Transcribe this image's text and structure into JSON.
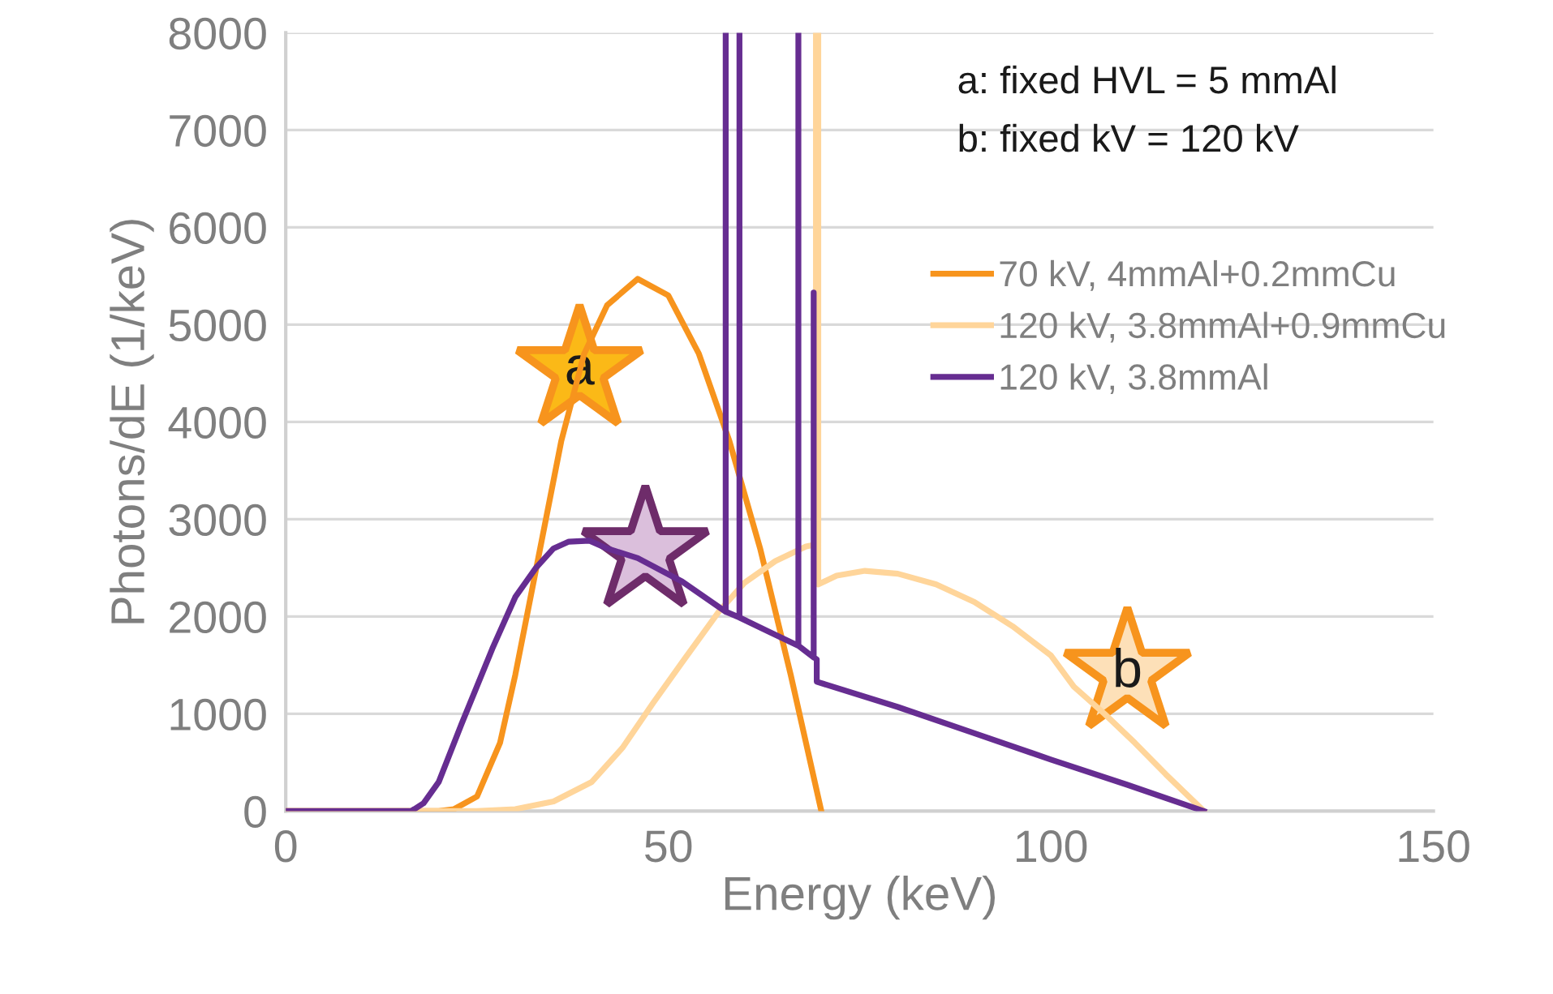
{
  "chart_data": {
    "type": "line",
    "xlabel": "Energy (keV)",
    "ylabel": "Photons/dE (1/keV)",
    "xlim": [
      0,
      150
    ],
    "xticks": [
      0,
      50,
      100,
      150
    ],
    "ylim": [
      0,
      8000
    ],
    "yticks": [
      0,
      1000,
      2000,
      3000,
      4000,
      5000,
      6000,
      7000,
      8000
    ],
    "grid": "y",
    "legend": "right",
    "marker": "none",
    "line_style": "solid",
    "series": [
      {
        "name": "70 kV, 4mmAl+0.2mmCu",
        "color": "#f7941d",
        "x": [
          0,
          20,
          22,
          25,
          28,
          30,
          33,
          36,
          39,
          42,
          46,
          50,
          54,
          58,
          62,
          66,
          70
        ],
        "values": [
          0,
          0,
          20,
          150,
          700,
          1400,
          2600,
          3800,
          4700,
          5200,
          5470,
          5300,
          4700,
          3800,
          2700,
          1400,
          0
        ]
      },
      {
        "name": "120 kV, 3.8mmAl+0.9mmCu",
        "color": "#ffd59a",
        "x": [
          0,
          25,
          30,
          35,
          40,
          44,
          48,
          52,
          56.6,
          60,
          64,
          68,
          69.3,
          69.3,
          69.6,
          69.6,
          72,
          75.7,
          80,
          85,
          90,
          95,
          100,
          103,
          107,
          111,
          115,
          120
        ],
        "values": [
          0,
          0,
          20,
          100,
          300,
          650,
          1110,
          1550,
          2050,
          2350,
          2570,
          2720,
          2740,
          8000,
          8000,
          2330,
          2420,
          2470,
          2440,
          2330,
          2150,
          1900,
          1600,
          1280,
          1000,
          700,
          380,
          0
        ]
      },
      {
        "name": "120 kV, 3.8mmAl",
        "color": "#662d91",
        "x": [
          0,
          15,
          16.4,
          18,
          20,
          23,
          27,
          30,
          32.7,
          35,
          37,
          39.7,
          42,
          46,
          51.8,
          57.5,
          57.5,
          57.5,
          59.3,
          59.3,
          59.3,
          63,
          67,
          67,
          67,
          69,
          69,
          69,
          69.4,
          69.4,
          80,
          90,
          100,
          110,
          120
        ],
        "values": [
          0,
          0,
          0,
          80,
          300,
          900,
          1670,
          2200,
          2500,
          2700,
          2770,
          2780,
          2700,
          2600,
          2360,
          2050,
          8000,
          2050,
          1990,
          8000,
          1990,
          1850,
          1700,
          8000,
          1700,
          1580,
          5330,
          1580,
          1560,
          1330,
          1070,
          800,
          530,
          270,
          0
        ]
      }
    ],
    "annotations": [
      "a",
      "b",
      "a: fixed HVL = 5 mmAl",
      "b: fixed kV = 120 kV"
    ]
  }
}
